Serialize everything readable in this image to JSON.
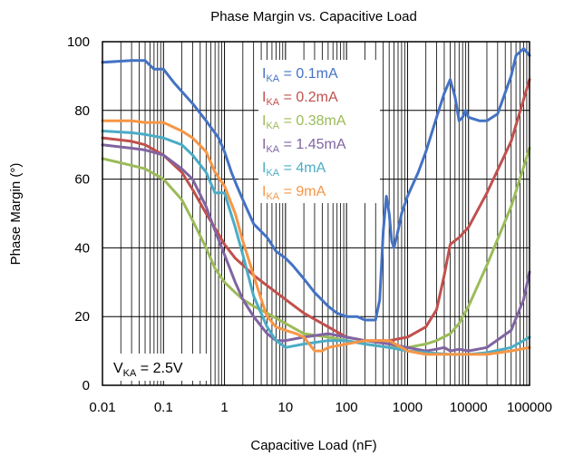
{
  "chart_data": {
    "type": "line",
    "title": "Phase Margin vs. Capacitive Load",
    "xlabel": "Capacitive Load  (nF)",
    "ylabel": "Phase Margin (°)",
    "x_scale": "log",
    "xlim": [
      0.01,
      100000
    ],
    "ylim": [
      0,
      100
    ],
    "x_tick_labels": [
      "0.01",
      "0.1",
      "1",
      "10",
      "100",
      "1000",
      "10000",
      "100000"
    ],
    "y_tick_labels": [
      "0",
      "20",
      "40",
      "60",
      "80",
      "100"
    ],
    "grid": true,
    "legend_position": "top-center",
    "annotation": {
      "main": "V",
      "sub": "KA",
      "rest": " = 2.5V"
    },
    "series": [
      {
        "name_main": "I",
        "name_sub": "KA",
        "name_rest": " = 0.1mA",
        "color": "#4472C4",
        "x": [
          0.01,
          0.03,
          0.05,
          0.07,
          0.1,
          0.15,
          0.3,
          0.5,
          0.8,
          1,
          1.3,
          1.6,
          2,
          3,
          5,
          7,
          10,
          13,
          20,
          30,
          50,
          70,
          100,
          150,
          200,
          300,
          350,
          400,
          450,
          500,
          550,
          600,
          700,
          800,
          1000,
          1500,
          2000,
          3000,
          4000,
          5000,
          6000,
          7000,
          8000,
          9000,
          10000,
          15000,
          20000,
          30000,
          50000,
          60000,
          80000,
          100000
        ],
        "y": [
          94,
          94.5,
          94.5,
          92,
          92,
          88,
          82,
          77,
          72,
          68,
          62,
          58,
          54,
          47,
          43,
          39,
          37,
          35,
          31,
          27,
          23,
          21,
          20,
          20,
          19,
          19,
          25,
          45,
          55,
          50,
          42,
          40,
          45,
          50,
          55,
          62,
          68,
          78,
          85,
          89,
          84,
          77,
          78,
          80,
          78,
          77,
          77,
          79,
          90,
          96,
          98,
          96
        ]
      },
      {
        "name_main": "I",
        "name_sub": "KA",
        "name_rest": " = 0.2mA",
        "color": "#C0504D",
        "x": [
          0.01,
          0.03,
          0.05,
          0.1,
          0.2,
          0.3,
          0.5,
          0.8,
          1,
          1.5,
          2,
          3,
          5,
          10,
          20,
          50,
          100,
          200,
          500,
          1000,
          2000,
          3000,
          4000,
          5000,
          7000,
          10000,
          20000,
          50000,
          100000
        ],
        "y": [
          72,
          71,
          70,
          67,
          62,
          57,
          50,
          44,
          41,
          37,
          35,
          32,
          29,
          25,
          21,
          17,
          14,
          13,
          13,
          14,
          17,
          22,
          32,
          41,
          43,
          46,
          56,
          71,
          89
        ]
      },
      {
        "name_main": "I",
        "name_sub": "KA",
        "name_rest": " = 0.38mA",
        "color": "#9BBB59",
        "x": [
          0.01,
          0.03,
          0.05,
          0.1,
          0.2,
          0.3,
          0.5,
          0.7,
          1,
          1.5,
          2,
          3,
          5,
          10,
          20,
          50,
          100,
          200,
          500,
          1000,
          2000,
          3000,
          5000,
          7000,
          10000,
          20000,
          50000,
          100000
        ],
        "y": [
          66,
          64,
          63,
          60,
          54,
          48,
          40,
          34,
          30,
          27,
          25,
          23,
          21,
          18,
          15,
          14,
          13,
          12,
          11,
          11,
          12,
          13,
          15,
          18,
          23,
          35,
          52,
          69
        ]
      },
      {
        "name_main": "I",
        "name_sub": "KA",
        "name_rest": " = 1.45mA",
        "color": "#8064A2",
        "x": [
          0.01,
          0.03,
          0.05,
          0.1,
          0.2,
          0.3,
          0.5,
          0.7,
          1,
          1.5,
          2,
          3,
          5,
          7,
          10,
          20,
          50,
          100,
          200,
          500,
          1000,
          2000,
          3000,
          4000,
          5000,
          7000,
          10000,
          20000,
          50000,
          80000,
          100000
        ],
        "y": [
          70,
          69,
          68.5,
          67,
          63,
          60,
          52,
          45,
          38,
          30,
          25,
          20,
          15,
          13,
          13,
          14,
          15,
          14,
          13,
          12,
          11,
          10,
          10.5,
          11,
          10,
          10.5,
          10,
          11,
          16,
          25,
          33
        ]
      },
      {
        "name_main": "I",
        "name_sub": "KA",
        "name_rest": " = 4mA",
        "color": "#4BACC6",
        "x": [
          0.01,
          0.03,
          0.05,
          0.1,
          0.2,
          0.3,
          0.5,
          0.7,
          1,
          1.5,
          2,
          3,
          5,
          7,
          10,
          20,
          50,
          100,
          200,
          500,
          1000,
          2000,
          5000,
          10000,
          20000,
          50000,
          100000
        ],
        "y": [
          74,
          73.5,
          73,
          72,
          70,
          67,
          62,
          56,
          56,
          46,
          38,
          26,
          17,
          13,
          11,
          12,
          13,
          13,
          12,
          11,
          10,
          9.5,
          9,
          9,
          9.5,
          11,
          14
        ]
      },
      {
        "name_main": "I",
        "name_sub": "KA",
        "name_rest": " = 9mA",
        "color": "#F79646",
        "x": [
          0.01,
          0.03,
          0.05,
          0.1,
          0.2,
          0.3,
          0.5,
          0.7,
          1,
          1.5,
          2,
          3,
          4,
          5,
          7,
          10,
          15,
          20,
          30,
          40,
          50,
          100,
          200,
          300,
          500,
          1000,
          2000,
          5000,
          10000,
          20000,
          50000,
          100000
        ],
        "y": [
          77,
          77,
          76.5,
          76.5,
          74,
          72,
          68,
          62,
          58,
          50,
          42,
          32,
          25,
          20,
          17,
          16,
          15,
          14,
          10,
          10,
          11,
          12,
          13,
          13,
          13,
          10,
          9,
          9,
          9,
          9,
          10,
          11
        ]
      }
    ]
  }
}
